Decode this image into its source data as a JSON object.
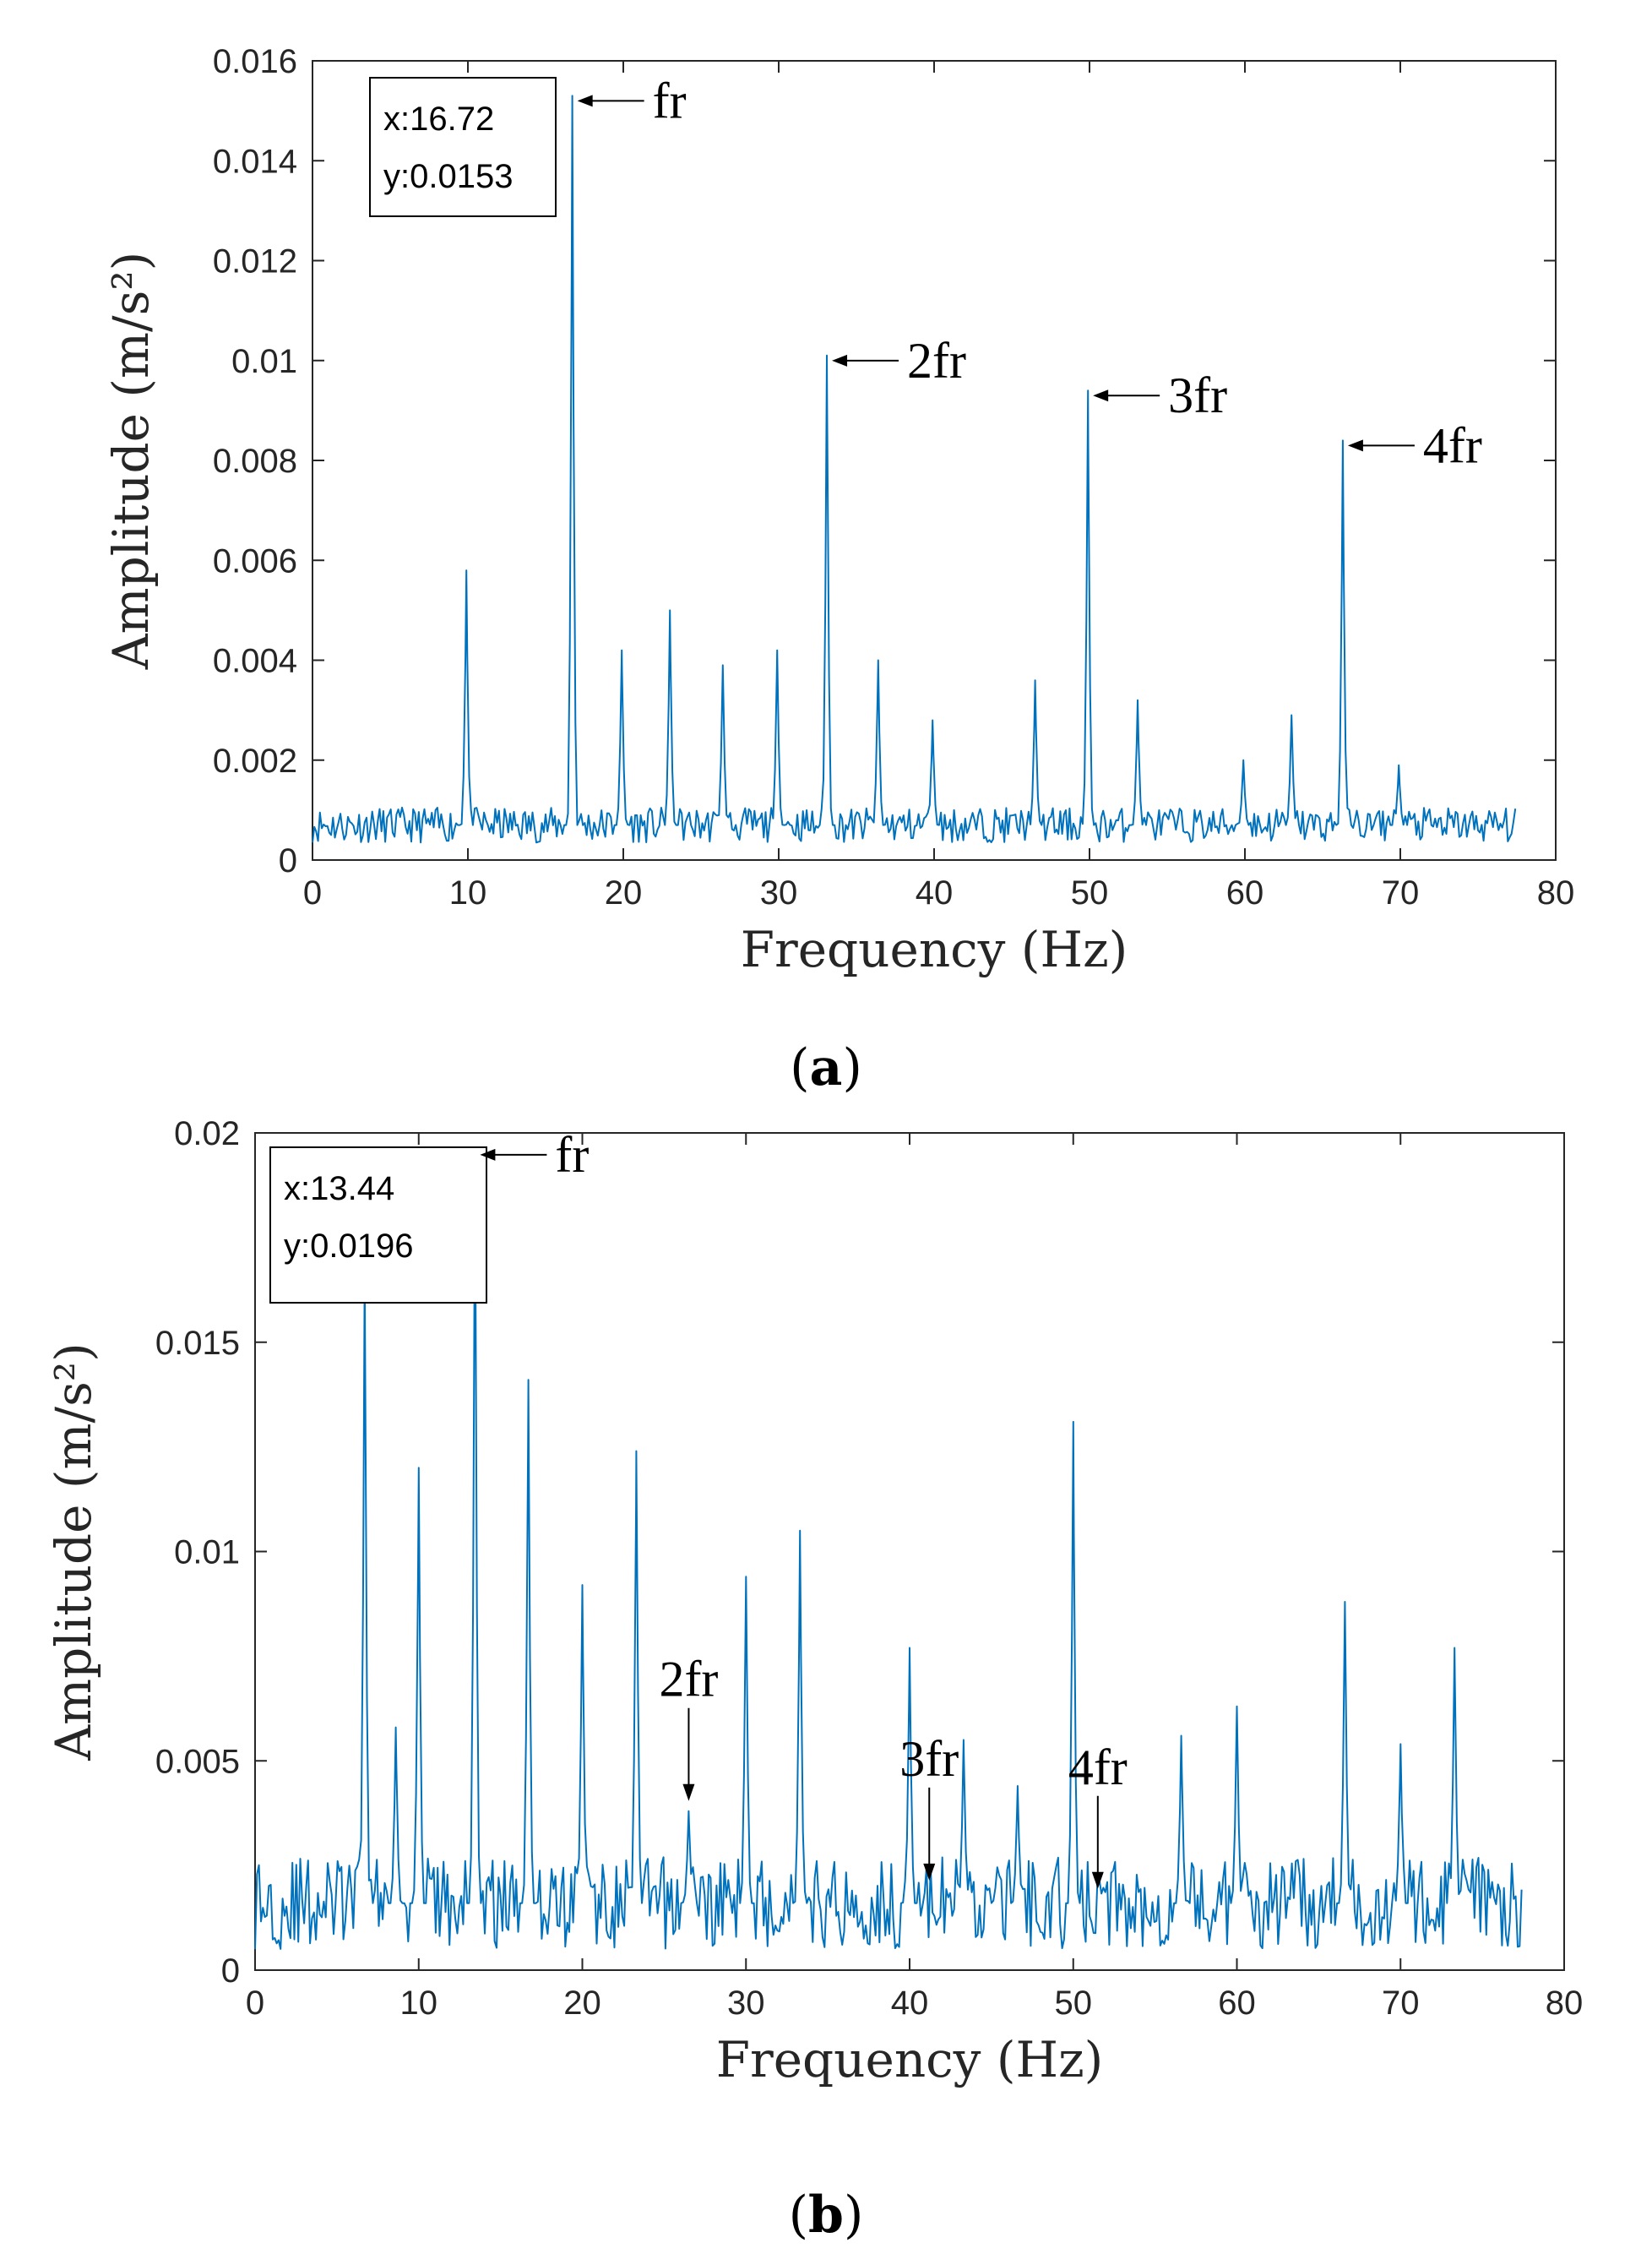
{
  "figure": {
    "caption_a": "a",
    "caption_b": "b"
  },
  "chart_data": [
    {
      "type": "line",
      "panel": "a",
      "xlabel": "Frequency (Hz)",
      "ylabel": "Amplitude (m/s²)",
      "xlim": [
        0,
        80
      ],
      "ylim": [
        0,
        0.016
      ],
      "xticks": [
        "0",
        "10",
        "20",
        "30",
        "40",
        "50",
        "60",
        "70",
        "80"
      ],
      "yticks": [
        "0",
        "0.002",
        "0.004",
        "0.006",
        "0.008",
        "0.01",
        "0.012",
        "0.014",
        "0.016"
      ],
      "color": "#0072BD",
      "baseline": 0.0007,
      "noise": 0.00035,
      "x_max": 77.5,
      "peaks": [
        {
          "x": 9.9,
          "y": 0.0058
        },
        {
          "x": 16.72,
          "y": 0.0153
        },
        {
          "x": 19.9,
          "y": 0.0042
        },
        {
          "x": 23.0,
          "y": 0.005
        },
        {
          "x": 26.4,
          "y": 0.0039
        },
        {
          "x": 29.9,
          "y": 0.0042
        },
        {
          "x": 33.1,
          "y": 0.0101
        },
        {
          "x": 36.4,
          "y": 0.004
        },
        {
          "x": 39.9,
          "y": 0.0028
        },
        {
          "x": 46.5,
          "y": 0.0036
        },
        {
          "x": 49.9,
          "y": 0.0094
        },
        {
          "x": 53.1,
          "y": 0.0032
        },
        {
          "x": 59.9,
          "y": 0.002
        },
        {
          "x": 63.0,
          "y": 0.0029
        },
        {
          "x": 66.3,
          "y": 0.0084
        },
        {
          "x": 69.9,
          "y": 0.0019
        }
      ],
      "datatip": {
        "x_text": "x:16.72",
        "y_text": "y:0.0153"
      },
      "annotations": [
        {
          "label": "fr",
          "x": 16.72,
          "y": 0.0153,
          "arrow": "left"
        },
        {
          "label": "2fr",
          "x": 33.1,
          "y": 0.0101,
          "arrow": "left"
        },
        {
          "label": "3fr",
          "x": 49.9,
          "y": 0.0094,
          "arrow": "left"
        },
        {
          "label": "4fr",
          "x": 66.3,
          "y": 0.0084,
          "arrow": "left"
        }
      ]
    },
    {
      "type": "line",
      "panel": "b",
      "xlabel": "Frequency (Hz)",
      "ylabel": "Amplitude (m/s²)",
      "xlim": [
        0,
        80
      ],
      "ylim": [
        0,
        0.02
      ],
      "xticks": [
        "0",
        "10",
        "20",
        "30",
        "40",
        "50",
        "60",
        "70",
        "80"
      ],
      "yticks": [
        "0",
        "0.005",
        "0.01",
        "0.015",
        "0.02"
      ],
      "color": "#0072BD",
      "baseline": 0.0016,
      "noise": 0.0011,
      "x_max": 77.5,
      "peaks": [
        {
          "x": 6.7,
          "y": 0.017
        },
        {
          "x": 8.6,
          "y": 0.0058
        },
        {
          "x": 10.0,
          "y": 0.012
        },
        {
          "x": 13.44,
          "y": 0.0196
        },
        {
          "x": 16.7,
          "y": 0.0141
        },
        {
          "x": 20.0,
          "y": 0.0092
        },
        {
          "x": 23.3,
          "y": 0.0124
        },
        {
          "x": 26.5,
          "y": 0.0038
        },
        {
          "x": 30.0,
          "y": 0.0094
        },
        {
          "x": 33.3,
          "y": 0.0105
        },
        {
          "x": 40.0,
          "y": 0.0077
        },
        {
          "x": 43.3,
          "y": 0.0055
        },
        {
          "x": 46.6,
          "y": 0.0044
        },
        {
          "x": 50.0,
          "y": 0.0131
        },
        {
          "x": 56.6,
          "y": 0.0056
        },
        {
          "x": 60.0,
          "y": 0.0063
        },
        {
          "x": 66.6,
          "y": 0.0088
        },
        {
          "x": 70.0,
          "y": 0.0054
        },
        {
          "x": 73.3,
          "y": 0.0077
        }
      ],
      "datatip": {
        "x_text": "x:13.44",
        "y_text": "y:0.0196"
      },
      "annotations": [
        {
          "label": "fr",
          "x": 13.44,
          "y": 0.0196,
          "arrow": "left"
        },
        {
          "label": "2fr",
          "x": 26.5,
          "y": 0.0038,
          "arrow": "down"
        },
        {
          "label": "3fr",
          "x": 41.2,
          "y": 0.0019,
          "arrow": "down"
        },
        {
          "label": "4fr",
          "x": 51.5,
          "y": 0.0017,
          "arrow": "down"
        }
      ]
    }
  ]
}
